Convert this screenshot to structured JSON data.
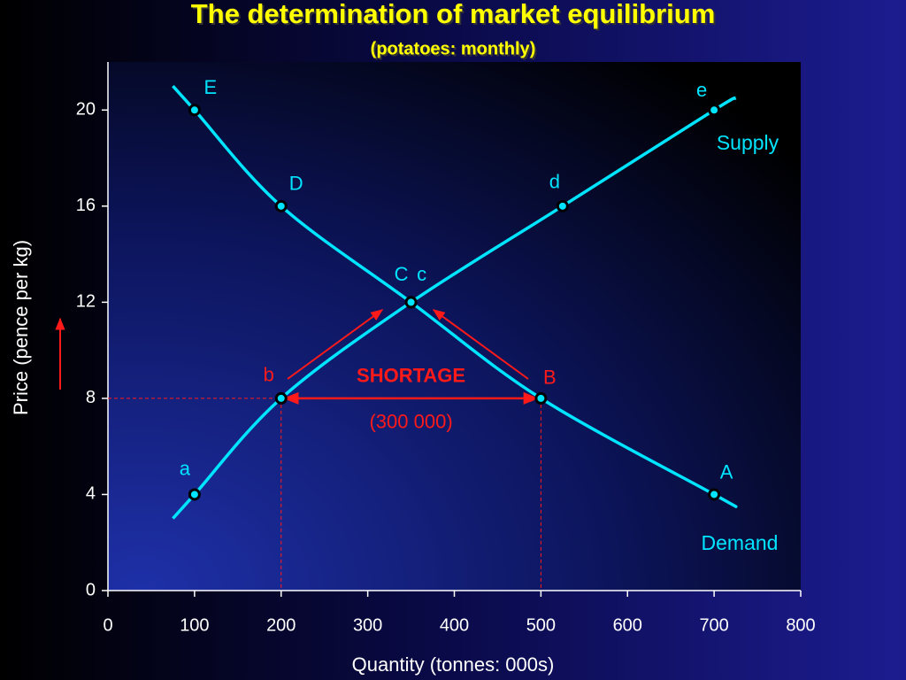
{
  "chart_data": {
    "type": "line",
    "title": "The determination of market equilibrium",
    "subtitle": "(potatoes: monthly)",
    "x_label": "Quantity (tonnes: 000s)",
    "y_label": "Price (pence per kg)",
    "xlim": [
      0,
      800
    ],
    "ylim": [
      0,
      22
    ],
    "xticks": [
      0,
      100,
      200,
      300,
      400,
      500,
      600,
      700,
      800
    ],
    "yticks": [
      0,
      4,
      8,
      12,
      16,
      20
    ],
    "series": [
      {
        "name": "Demand",
        "color": "#00e5ff",
        "x": [
          75,
          100,
          200,
          350,
          500,
          700,
          725
        ],
        "values": [
          21,
          20,
          16,
          12,
          8,
          4,
          3.5
        ],
        "point_labels": [
          null,
          "E",
          "D",
          "C",
          "B",
          "A",
          null
        ]
      },
      {
        "name": "Supply",
        "color": "#00e5ff",
        "x": [
          75,
          100,
          200,
          350,
          525,
          700,
          725
        ],
        "values": [
          3,
          4,
          8,
          12,
          16,
          20,
          20.5
        ],
        "point_labels": [
          null,
          "a",
          "b",
          "c",
          "d",
          "e",
          null
        ]
      }
    ],
    "shortage": {
      "label": "SHORTAGE",
      "amount_label": "(300 000)",
      "price": 8,
      "from": 200,
      "to": 500,
      "color": "#ff1a1a"
    }
  }
}
